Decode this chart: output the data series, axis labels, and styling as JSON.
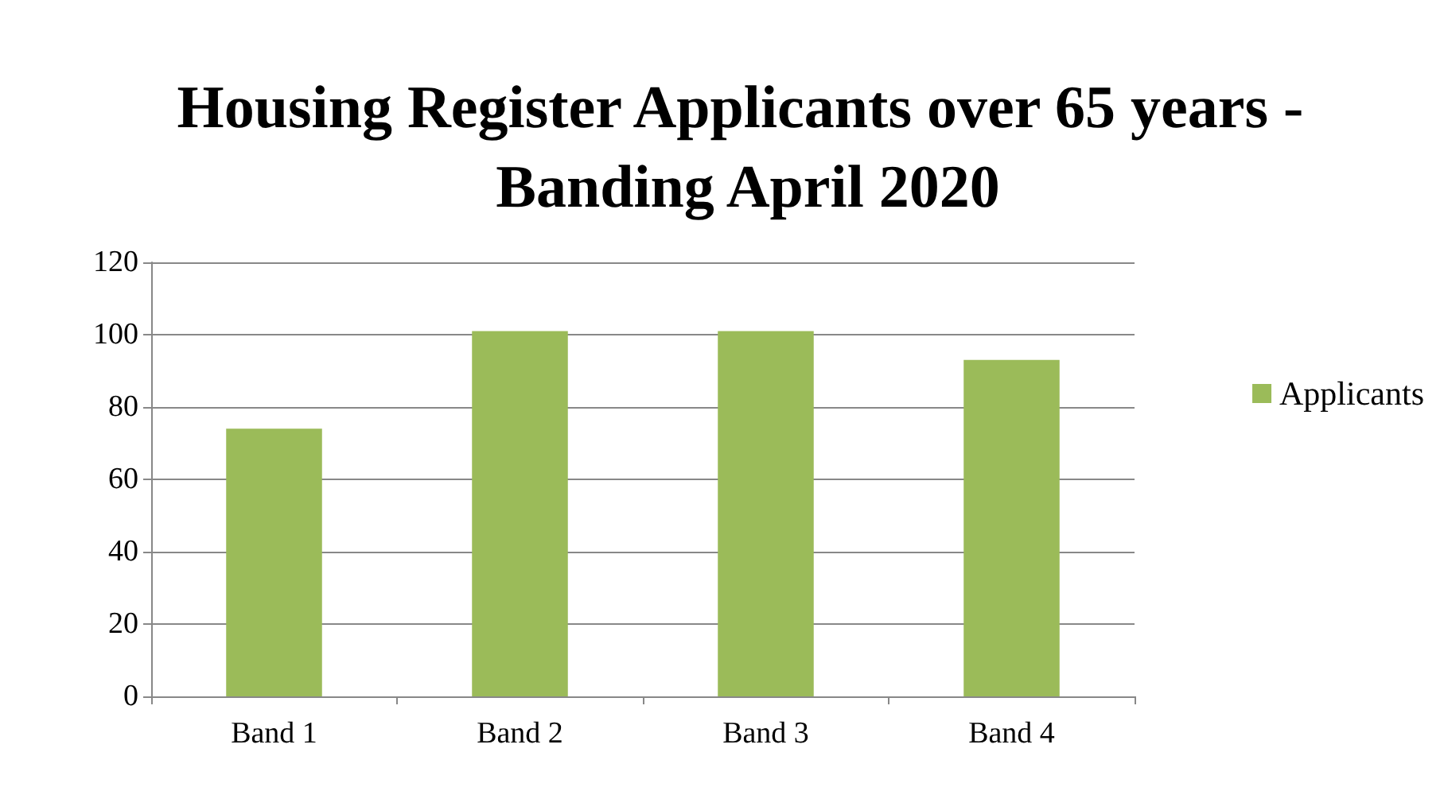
{
  "chart_data": {
    "type": "bar",
    "title": "Housing Register Applicants over 65 years - Banding April 2020",
    "categories": [
      "Band 1",
      "Band 2",
      "Band 3",
      "Band 4"
    ],
    "series": [
      {
        "name": "Applicants",
        "color": "#9bbb59",
        "values": [
          74,
          101,
          101,
          93
        ]
      }
    ],
    "ylim": [
      0,
      120
    ],
    "yticks": [
      0,
      20,
      40,
      60,
      80,
      100,
      120
    ],
    "grid": "y",
    "legend": "right"
  }
}
